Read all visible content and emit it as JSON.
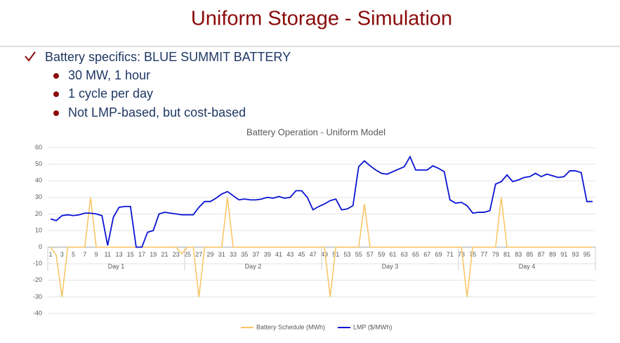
{
  "header": {
    "title": "Uniform Storage - Simulation"
  },
  "bullets": {
    "main": "Battery specifics: BLUE SUMMIT BATTERY",
    "sub": [
      "30 MW, 1 hour",
      "1 cycle per day",
      "Not LMP-based, but cost-based"
    ]
  },
  "chart_data": {
    "type": "line",
    "title": "Battery Operation - Uniform Model",
    "categories": [
      1,
      null,
      3,
      null,
      5,
      null,
      7,
      null,
      9,
      null,
      11,
      null,
      13,
      null,
      15,
      null,
      17,
      null,
      19,
      null,
      21,
      null,
      23,
      null,
      25,
      null,
      27,
      null,
      29,
      null,
      31,
      null,
      33,
      null,
      35,
      null,
      37,
      null,
      39,
      null,
      41,
      null,
      43,
      null,
      45,
      null,
      47,
      null,
      49,
      null,
      51,
      null,
      53,
      null,
      55,
      null,
      57,
      null,
      59,
      null,
      61,
      null,
      63,
      null,
      65,
      null,
      67,
      null,
      69,
      null,
      71,
      null,
      73,
      null,
      75,
      null,
      77,
      null,
      79,
      null,
      81,
      null,
      83,
      null,
      85,
      null,
      87,
      null,
      89,
      null,
      91,
      null,
      93,
      null,
      95,
      null
    ],
    "groups": [
      "Day 1",
      "Day 2",
      "Day 3",
      "Day 4"
    ],
    "series": [
      {
        "name": "Battery Schedule (MWh)",
        "color": "#f9c35f",
        "values": [
          0,
          -5,
          -30,
          0,
          0,
          0,
          0,
          30,
          0,
          0,
          0,
          0,
          0,
          0,
          0,
          0,
          0,
          0,
          0,
          0,
          0,
          0,
          0,
          -4,
          0,
          0,
          -30,
          0,
          0,
          0,
          0,
          30,
          0,
          0,
          0,
          0,
          0,
          0,
          0,
          0,
          0,
          0,
          0,
          0,
          0,
          0,
          0,
          0,
          0,
          -30,
          0,
          0,
          0,
          0,
          0,
          26,
          0,
          0,
          0,
          0,
          0,
          0,
          0,
          0,
          0,
          0,
          0,
          0,
          0,
          0,
          0,
          0,
          0,
          -30,
          0,
          0,
          0,
          0,
          0,
          30,
          0,
          0,
          0,
          0,
          0,
          0,
          0,
          0,
          0,
          0,
          0,
          0,
          0,
          0,
          0,
          0
        ]
      },
      {
        "name": "LMP ($/MWh)",
        "color": "#0a14d2",
        "values": [
          17,
          16,
          19,
          19.5,
          19,
          19.5,
          20.5,
          20.5,
          20,
          19,
          1,
          18,
          24,
          24.5,
          24.5,
          0,
          0,
          9,
          10,
          20,
          21,
          20.5,
          20,
          19.5,
          19.5,
          19.5,
          24,
          27.5,
          27.5,
          29.5,
          32,
          33.5,
          31,
          28.5,
          29,
          28.5,
          28.5,
          29,
          30,
          29.5,
          30.5,
          29.5,
          30,
          34,
          34,
          30,
          22.5,
          24.5,
          26,
          28,
          29,
          22.5,
          23,
          25,
          48.5,
          52,
          49,
          46.5,
          44.5,
          44,
          45.5,
          47,
          48.5,
          54.5,
          46.5,
          46.5,
          46.5,
          49,
          47.5,
          45.5,
          28.5,
          26.5,
          27,
          25,
          20.5,
          21,
          21,
          22,
          38,
          39.5,
          43.5,
          39.5,
          40.5,
          42,
          42.5,
          44.5,
          42.5,
          44,
          43,
          42,
          42.5,
          46,
          46,
          45,
          27.5,
          27.5
        ]
      }
    ],
    "ylim": [
      -40,
      60
    ],
    "yticks": [
      -40,
      -30,
      -20,
      -10,
      0,
      10,
      20,
      30,
      40,
      50,
      60
    ],
    "grid": true,
    "legend": "bottom"
  }
}
